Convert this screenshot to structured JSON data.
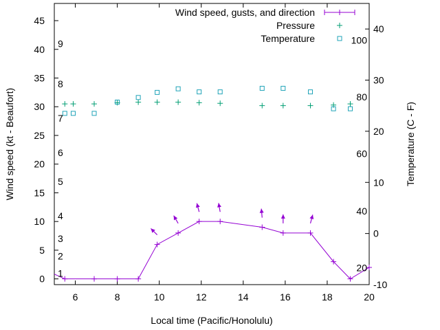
{
  "chart_data": {
    "type": "line",
    "xlabel": "Local time (Pacific/Honolulu)",
    "ylabel": "Wind speed (kt - Beaufort)",
    "y2label": "Temperature (C - F)",
    "xlim": [
      5,
      20
    ],
    "ylim": [
      -1,
      48
    ],
    "y2lim": [
      -10,
      45
    ],
    "x_ticks": [
      6,
      8,
      10,
      12,
      14,
      16,
      18,
      20
    ],
    "y_ticks": [
      0,
      5,
      10,
      15,
      20,
      25,
      30,
      35,
      40,
      45
    ],
    "y2_ticks": [
      -10,
      0,
      10,
      20,
      30,
      40
    ],
    "fahrenheit_ticks": [
      {
        "label": "20",
        "celsius": -6.7
      },
      {
        "label": "40",
        "celsius": 4.4
      },
      {
        "label": "60",
        "celsius": 15.6
      },
      {
        "label": "80",
        "celsius": 26.7
      },
      {
        "label": "100",
        "celsius": 37.8
      }
    ],
    "beaufort_ticks": [
      {
        "label": "1",
        "kt": 1
      },
      {
        "label": "2",
        "kt": 4
      },
      {
        "label": "3",
        "kt": 7
      },
      {
        "label": "4",
        "kt": 11
      },
      {
        "label": "5",
        "kt": 17
      },
      {
        "label": "6",
        "kt": 22
      },
      {
        "label": "7",
        "kt": 28
      },
      {
        "label": "8",
        "kt": 34
      },
      {
        "label": "9",
        "kt": 41
      }
    ],
    "legend": {
      "position": "top-right",
      "entries": [
        {
          "label": "Wind speed, gusts, and direction",
          "color": "#9400d3",
          "marker": "line-plus"
        },
        {
          "label": "Pressure",
          "color": "#009e73",
          "marker": "plus"
        },
        {
          "label": "Temperature",
          "color": "#1fa3b8",
          "marker": "square"
        }
      ]
    },
    "series": [
      {
        "name": "Wind speed, gusts, and direction",
        "axis": "y",
        "color": "#9400d3",
        "x": [
          4.9,
          5.5,
          6.9,
          8.0,
          9.0,
          9.9,
          10.9,
          11.9,
          12.9,
          14.9,
          15.9,
          17.2,
          18.3,
          19.1,
          20.0
        ],
        "values": [
          1,
          0,
          0,
          0,
          0,
          6,
          8,
          10,
          10,
          9,
          8,
          8,
          3,
          0,
          2
        ]
      },
      {
        "name": "Pressure",
        "axis": "y",
        "color": "#009e73",
        "x": [
          5.5,
          5.9,
          6.9,
          8.0,
          9.0,
          9.9,
          10.9,
          11.9,
          12.9,
          14.9,
          15.9,
          17.2,
          18.3,
          19.1
        ],
        "values": [
          30.5,
          30.5,
          30.5,
          30.7,
          30.8,
          30.8,
          30.8,
          30.7,
          30.6,
          30.2,
          30.2,
          30.2,
          30.3,
          30.5
        ]
      },
      {
        "name": "Temperature",
        "axis": "y2",
        "color": "#1fa3b8",
        "x": [
          5.5,
          5.9,
          6.9,
          8.0,
          9.0,
          9.9,
          10.9,
          11.9,
          12.9,
          14.9,
          15.9,
          17.2,
          18.3,
          19.1
        ],
        "values": [
          23.5,
          23.5,
          23.5,
          25.7,
          26.6,
          27.6,
          28.3,
          27.7,
          27.7,
          28.4,
          28.4,
          27.7,
          24.4,
          24.4
        ]
      }
    ],
    "wind_arrows": {
      "x": [
        9.9,
        10.9,
        11.9,
        12.9,
        14.9,
        15.9,
        17.2
      ],
      "bearing_deg": [
        315,
        330,
        345,
        350,
        355,
        0,
        15
      ]
    }
  }
}
